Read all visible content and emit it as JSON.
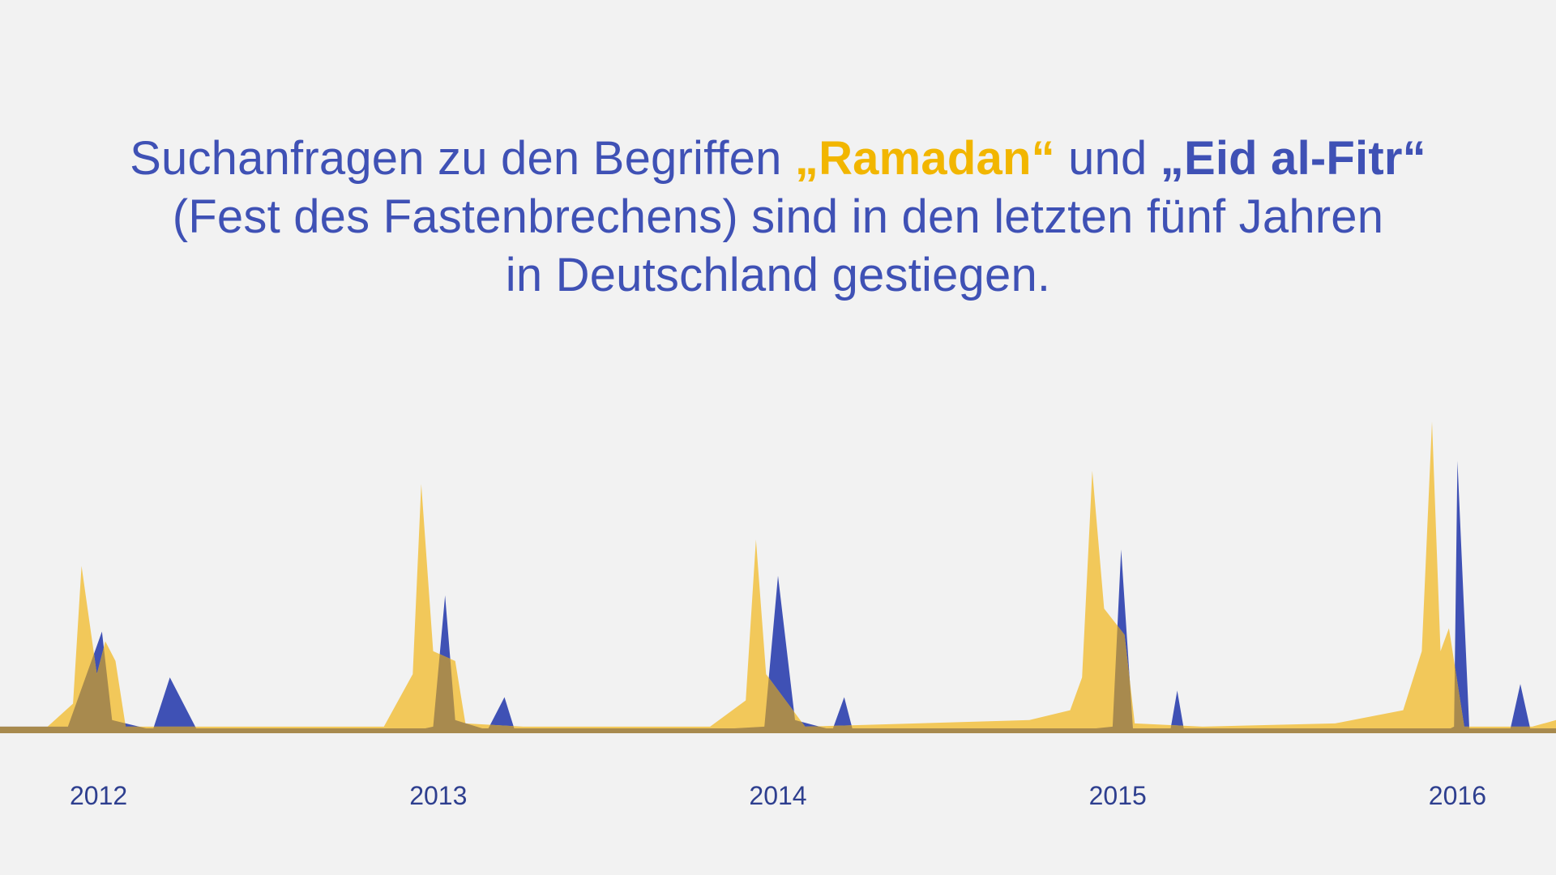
{
  "headline": {
    "line1_pre": "Suchanfragen zu den Begriffen ",
    "keyword_ramadan": "„Ramadan“",
    "line1_mid": " und ",
    "keyword_eid": "„Eid al-Fitr“",
    "line2": "(Fest des Fastenbrechens) sind in den letzten fünf Jahren",
    "line3": "in Deutschland gestiegen."
  },
  "colors": {
    "background": "#f2f2f2",
    "ramadan": "#f2c85a",
    "eid": "#3f51b5",
    "overlap": "#a88a4e",
    "text": "#3f51b5",
    "axis_text": "#2e3f8f"
  },
  "chart_data": {
    "type": "area",
    "x_unit": "year (decimal)",
    "xlim": [
      2011.71,
      2016.29
    ],
    "ylim": [
      0,
      100
    ],
    "x_ticks": [
      2012,
      2013,
      2014,
      2015,
      2016
    ],
    "x_tick_labels": [
      "2012",
      "2013",
      "2014",
      "2015",
      "2016"
    ],
    "series": [
      {
        "name": "„Ramadan“",
        "color": "#f2c85a",
        "points": [
          [
            2011.71,
            2
          ],
          [
            2011.85,
            2
          ],
          [
            2011.925,
            9
          ],
          [
            2011.95,
            51
          ],
          [
            2011.995,
            18
          ],
          [
            2012.02,
            28
          ],
          [
            2012.05,
            22
          ],
          [
            2012.08,
            2
          ],
          [
            2012.25,
            2
          ],
          [
            2012.84,
            2
          ],
          [
            2012.925,
            18
          ],
          [
            2012.95,
            76
          ],
          [
            2012.985,
            25
          ],
          [
            2013.05,
            22
          ],
          [
            2013.08,
            3
          ],
          [
            2013.25,
            2
          ],
          [
            2013.8,
            2
          ],
          [
            2013.905,
            10
          ],
          [
            2013.935,
            59
          ],
          [
            2013.965,
            18
          ],
          [
            2014.08,
            2
          ],
          [
            2014.74,
            4
          ],
          [
            2014.86,
            7
          ],
          [
            2014.895,
            17
          ],
          [
            2014.925,
            80
          ],
          [
            2014.96,
            38
          ],
          [
            2015.02,
            30
          ],
          [
            2015.05,
            3
          ],
          [
            2015.25,
            2
          ],
          [
            2015.64,
            3
          ],
          [
            2015.84,
            7
          ],
          [
            2015.895,
            25
          ],
          [
            2015.925,
            95
          ],
          [
            2015.95,
            25
          ],
          [
            2015.975,
            32
          ],
          [
            2016.02,
            2
          ],
          [
            2016.22,
            2
          ],
          [
            2016.29,
            4
          ]
        ]
      },
      {
        "name": "„Eid al-Fitr“",
        "color": "#3f51b5",
        "points": [
          [
            2011.71,
            2
          ],
          [
            2011.91,
            2
          ],
          [
            2012.01,
            31
          ],
          [
            2012.04,
            4
          ],
          [
            2012.16,
            1
          ],
          [
            2012.21,
            17
          ],
          [
            2012.29,
            1
          ],
          [
            2012.82,
            1
          ],
          [
            2012.94,
            1
          ],
          [
            2012.985,
            2
          ],
          [
            2013.02,
            42
          ],
          [
            2013.05,
            4
          ],
          [
            2013.145,
            1
          ],
          [
            2013.195,
            11
          ],
          [
            2013.225,
            1
          ],
          [
            2013.79,
            1
          ],
          [
            2013.96,
            2
          ],
          [
            2014.0,
            48
          ],
          [
            2014.05,
            4
          ],
          [
            2014.16,
            1
          ],
          [
            2014.195,
            11
          ],
          [
            2014.22,
            1
          ],
          [
            2014.89,
            1
          ],
          [
            2014.985,
            2
          ],
          [
            2015.01,
            56
          ],
          [
            2015.045,
            1
          ],
          [
            2015.155,
            1
          ],
          [
            2015.175,
            13
          ],
          [
            2015.195,
            1
          ],
          [
            2015.97,
            1
          ],
          [
            2015.99,
            2
          ],
          [
            2016.0,
            83
          ],
          [
            2016.035,
            1
          ],
          [
            2016.155,
            1
          ],
          [
            2016.185,
            15
          ],
          [
            2016.215,
            1
          ],
          [
            2016.29,
            1
          ]
        ]
      }
    ]
  }
}
